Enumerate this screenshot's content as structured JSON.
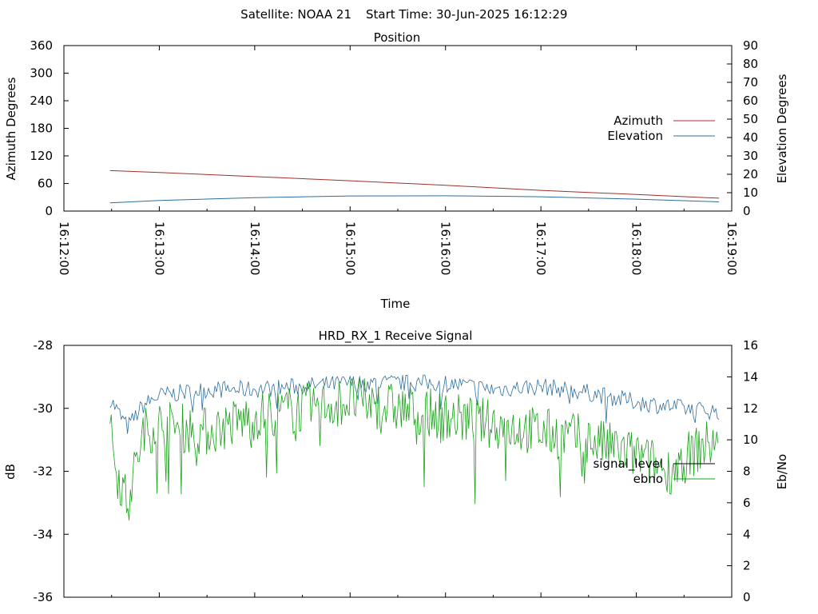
{
  "header": {
    "satellite": "Satellite: NOAA 21",
    "start_time": "Start Time: 30-Jun-2025 16:12:29"
  },
  "chart_data": [
    {
      "type": "line",
      "title": "Position",
      "xlabel": "Time",
      "ylabel": "Azimuth Degrees",
      "y2label": "Elevation Degrees",
      "xlim": [
        "16:12:00",
        "16:19:00"
      ],
      "xticks": [
        "16:12:00",
        "16:13:00",
        "16:14:00",
        "16:15:00",
        "16:16:00",
        "16:17:00",
        "16:18:00",
        "16:19:00"
      ],
      "ylim": [
        0,
        360
      ],
      "yticks": [
        0,
        60,
        120,
        180,
        240,
        300,
        360
      ],
      "y2lim": [
        0,
        90
      ],
      "y2ticks": [
        0,
        10,
        20,
        30,
        40,
        50,
        60,
        70,
        80,
        90
      ],
      "legend_position": "right",
      "series": [
        {
          "name": "Azimuth",
          "axis": "left",
          "color": "#a0302c",
          "x": [
            "16:12:29",
            "16:13:00",
            "16:14:00",
            "16:15:00",
            "16:16:00",
            "16:17:00",
            "16:18:00",
            "16:18:52"
          ],
          "values": [
            88,
            84,
            75,
            66,
            56,
            45,
            36,
            28
          ]
        },
        {
          "name": "Elevation",
          "axis": "right",
          "color": "#2e6f9e",
          "x": [
            "16:12:29",
            "16:13:00",
            "16:14:00",
            "16:15:00",
            "16:16:00",
            "16:17:00",
            "16:18:00",
            "16:18:52"
          ],
          "values": [
            4.5,
            5.8,
            7.3,
            8.2,
            8.3,
            7.8,
            6.5,
            5.0
          ]
        }
      ]
    },
    {
      "type": "line",
      "title": "HRD_RX_1 Receive Signal",
      "ylabel": "dB",
      "y2label": "Eb/No",
      "xlim": [
        "16:12:00",
        "16:19:00"
      ],
      "ylim": [
        -36,
        -28
      ],
      "yticks": [
        -36,
        -34,
        -32,
        -30,
        -28
      ],
      "y2lim": [
        0,
        16
      ],
      "y2ticks": [
        0,
        2,
        4,
        6,
        8,
        10,
        12,
        14,
        16
      ],
      "legend_position": "right",
      "series": [
        {
          "name": "signal_level",
          "axis": "left",
          "color": "#2e6f9e",
          "x": [
            "16:12:29",
            "16:12:40",
            "16:12:50",
            "16:13:00",
            "16:13:30",
            "16:14:00",
            "16:14:30",
            "16:15:00",
            "16:15:30",
            "16:16:00",
            "16:16:30",
            "16:17:00",
            "16:17:30",
            "16:18:00",
            "16:18:30",
            "16:18:52"
          ],
          "values": [
            -29.7,
            -30.6,
            -29.9,
            -29.6,
            -29.4,
            -29.4,
            -29.3,
            -29.2,
            -29.2,
            -29.2,
            -29.4,
            -29.3,
            -29.5,
            -29.8,
            -30.0,
            -30.1
          ]
        },
        {
          "name": "ebno",
          "axis": "right",
          "color": "#1aa01a",
          "x": [
            "16:12:29",
            "16:12:35",
            "16:12:40",
            "16:12:50",
            "16:13:00",
            "16:13:30",
            "16:14:00",
            "16:14:30",
            "16:15:00",
            "16:15:30",
            "16:16:00",
            "16:16:30",
            "16:17:00",
            "16:17:30",
            "16:18:00",
            "16:18:20",
            "16:18:40",
            "16:18:52"
          ],
          "values": [
            10.5,
            7.5,
            6.0,
            10.5,
            11.0,
            10.5,
            11.5,
            12.0,
            12.5,
            12.0,
            11.5,
            11.0,
            10.5,
            10.0,
            9.0,
            8.0,
            9.5,
            10.0
          ]
        }
      ]
    }
  ]
}
